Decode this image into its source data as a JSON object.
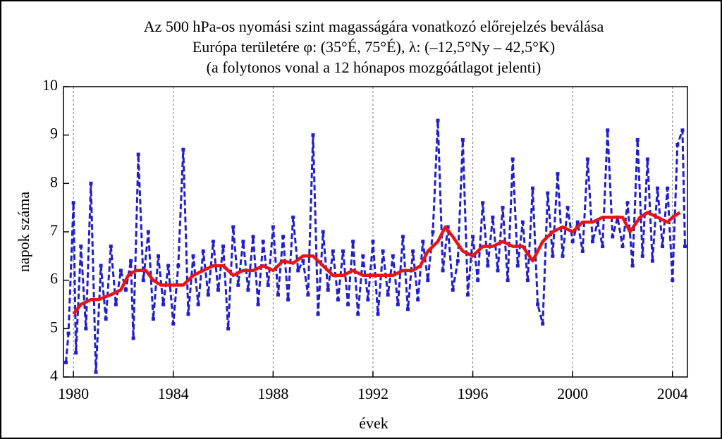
{
  "chart_data": {
    "type": "line",
    "title": [
      "Az 500 hPa-os nyomási szint magasságára vonatkozó előrejelzés beválása",
      "Európa területére φ: (35°É, 75°É), λ: (–12,5°Ny – 42,5°K)",
      "(a folytonos vonal a 12 hónapos mozgóátlagot jelenti)"
    ],
    "xlabel": "évek",
    "ylabel": "napok száma",
    "xlim": [
      1979.6,
      2004.6
    ],
    "ylim": [
      4,
      10
    ],
    "xticks": [
      1980,
      1984,
      1988,
      1992,
      1996,
      2000,
      2004
    ],
    "yticks": [
      4,
      5,
      6,
      7,
      8,
      9,
      10
    ],
    "grid": true,
    "series": [
      {
        "color": "#1f1fd0",
        "style": "dashed",
        "markers": true,
        "x": [
          1979.7,
          1979.8,
          1980.0,
          1980.1,
          1980.3,
          1980.5,
          1980.7,
          1980.9,
          1981.1,
          1981.3,
          1981.5,
          1981.7,
          1981.9,
          1982.1,
          1982.3,
          1982.4,
          1982.6,
          1982.8,
          1983.0,
          1983.2,
          1983.4,
          1983.6,
          1983.8,
          1984.0,
          1984.2,
          1984.4,
          1984.6,
          1984.8,
          1985.0,
          1985.2,
          1985.4,
          1985.6,
          1985.8,
          1986.0,
          1986.2,
          1986.4,
          1986.6,
          1986.8,
          1987.0,
          1987.2,
          1987.4,
          1987.6,
          1987.8,
          1988.0,
          1988.2,
          1988.4,
          1988.6,
          1988.8,
          1989.0,
          1989.2,
          1989.4,
          1989.6,
          1989.8,
          1990.0,
          1990.2,
          1990.4,
          1990.6,
          1990.8,
          1991.0,
          1991.2,
          1991.4,
          1991.6,
          1991.8,
          1992.0,
          1992.2,
          1992.4,
          1992.6,
          1992.8,
          1993.0,
          1993.2,
          1993.4,
          1993.6,
          1993.8,
          1994.0,
          1994.2,
          1994.4,
          1994.6,
          1994.8,
          1995.0,
          1995.2,
          1995.4,
          1995.6,
          1995.8,
          1996.0,
          1996.2,
          1996.4,
          1996.6,
          1996.8,
          1997.0,
          1997.2,
          1997.4,
          1997.6,
          1997.8,
          1998.0,
          1998.2,
          1998.4,
          1998.6,
          1998.8,
          1999.0,
          1999.2,
          1999.4,
          1999.6,
          1999.8,
          2000.0,
          2000.2,
          2000.4,
          2000.6,
          2000.8,
          2001.0,
          2001.2,
          2001.4,
          2001.6,
          2001.8,
          2002.0,
          2002.2,
          2002.4,
          2002.6,
          2002.8,
          2003.0,
          2003.2,
          2003.4,
          2003.6,
          2003.8,
          2004.0,
          2004.2,
          2004.4,
          2004.5
        ],
        "values": [
          4.3,
          4.9,
          7.6,
          4.5,
          6.7,
          5.0,
          8.0,
          4.1,
          6.3,
          5.2,
          6.7,
          5.5,
          6.2,
          5.8,
          6.4,
          4.8,
          8.6,
          6.0,
          7.0,
          5.2,
          6.5,
          5.5,
          6.3,
          5.1,
          6.3,
          8.7,
          5.3,
          6.5,
          5.5,
          6.6,
          5.7,
          6.8,
          5.8,
          6.7,
          5.0,
          7.1,
          5.9,
          6.8,
          5.8,
          6.9,
          5.5,
          6.8,
          5.9,
          7.1,
          5.7,
          6.9,
          5.6,
          7.3,
          6.2,
          6.4,
          5.7,
          9.0,
          5.3,
          7.0,
          5.8,
          6.6,
          5.6,
          6.6,
          5.5,
          6.8,
          5.3,
          6.5,
          5.6,
          6.8,
          5.3,
          6.6,
          5.7,
          6.5,
          5.5,
          6.9,
          5.4,
          6.6,
          5.6,
          6.8,
          6.0,
          7.0,
          9.3,
          6.2,
          7.1,
          5.8,
          6.4,
          8.9,
          5.7,
          6.9,
          6.0,
          7.6,
          6.3,
          7.3,
          6.2,
          7.5,
          6.0,
          8.5,
          6.3,
          7.2,
          6.0,
          7.9,
          5.5,
          5.1,
          7.8,
          6.5,
          8.2,
          6.5,
          7.5,
          6.8,
          7.2,
          6.6,
          8.5,
          6.8,
          7.2,
          6.7,
          9.1,
          6.9,
          7.3,
          6.7,
          7.6,
          6.3,
          8.9,
          6.5,
          8.5,
          6.4,
          7.9,
          6.7,
          7.9,
          6.0,
          8.8,
          9.1,
          6.7
        ]
      },
      {
        "color": "#ee1111",
        "style": "solid",
        "markers": false,
        "x": [
          1980.0,
          1980.3,
          1980.7,
          1981.0,
          1981.5,
          1981.9,
          1982.2,
          1982.5,
          1982.9,
          1983.2,
          1983.5,
          1984.0,
          1984.4,
          1984.8,
          1985.2,
          1985.6,
          1986.0,
          1986.4,
          1986.8,
          1987.2,
          1987.6,
          1988.0,
          1988.4,
          1988.8,
          1989.2,
          1989.6,
          1990.0,
          1990.4,
          1990.8,
          1991.2,
          1991.6,
          1992.0,
          1992.4,
          1992.8,
          1993.2,
          1993.6,
          1993.9,
          1994.2,
          1994.6,
          1994.9,
          1995.2,
          1995.6,
          1996.0,
          1996.4,
          1996.8,
          1997.2,
          1997.6,
          1998.0,
          1998.4,
          1998.8,
          1999.2,
          1999.6,
          2000.0,
          2000.4,
          2000.8,
          2001.2,
          2001.6,
          2002.0,
          2002.3,
          2002.7,
          2003.0,
          2003.4,
          2003.8,
          2004.0,
          2004.3
        ],
        "values": [
          5.3,
          5.5,
          5.6,
          5.6,
          5.7,
          5.8,
          6.1,
          6.2,
          6.2,
          6.0,
          5.9,
          5.9,
          5.9,
          6.1,
          6.2,
          6.3,
          6.3,
          6.1,
          6.2,
          6.2,
          6.3,
          6.2,
          6.4,
          6.35,
          6.5,
          6.5,
          6.3,
          6.1,
          6.1,
          6.2,
          6.1,
          6.1,
          6.1,
          6.1,
          6.2,
          6.2,
          6.3,
          6.6,
          6.8,
          7.1,
          6.9,
          6.6,
          6.5,
          6.7,
          6.7,
          6.8,
          6.7,
          6.7,
          6.4,
          6.8,
          7.0,
          7.1,
          7.0,
          7.2,
          7.2,
          7.3,
          7.3,
          7.3,
          7.0,
          7.3,
          7.4,
          7.3,
          7.2,
          7.3,
          7.4
        ]
      }
    ]
  }
}
